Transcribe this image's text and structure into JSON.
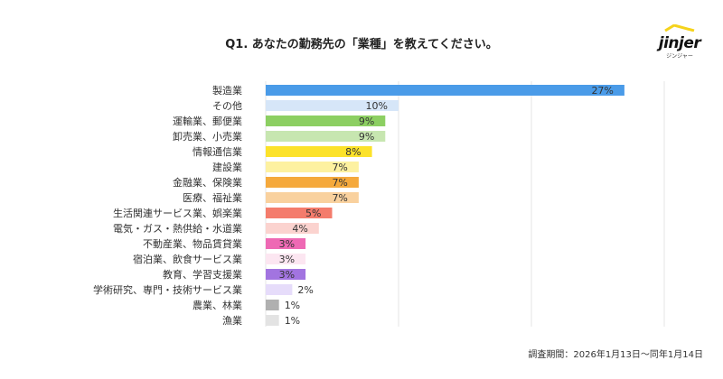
{
  "title": "Q1. あなたの勤務先の「業種」を教えてください。",
  "logo": {
    "text": "jinjer",
    "kana": "ジンジャー",
    "accent": "#f5d31c"
  },
  "note": "調査期間：2026年1月13日〜同年1月14日",
  "chart_data": {
    "type": "bar",
    "orientation": "horizontal",
    "xlim": [
      0,
      30
    ],
    "grid": true,
    "categories": [
      "製造業",
      "その他",
      "運輸業、郵便業",
      "卸売業、小売業",
      "情報通信業",
      "建設業",
      "金融業、保険業",
      "医療、福祉業",
      "生活関連サービス業、娯楽業",
      "電気・ガス・熱供給・水道業",
      "不動産業、物品賃貸業",
      "宿泊業、飲食サービス業",
      "教育、学習支援業",
      "学術研究、専門・技術サービス業",
      "農業、林業",
      "漁業"
    ],
    "values": [
      27,
      10,
      9,
      9,
      8,
      7,
      7,
      7,
      5,
      4,
      3,
      3,
      3,
      2,
      1,
      1
    ],
    "labels": [
      "27%",
      "10%",
      "9%",
      "9%",
      "8%",
      "7%",
      "7%",
      "7%",
      "5%",
      "4%",
      "3%",
      "3%",
      "3%",
      "2%",
      "1%",
      "1%"
    ],
    "colors": [
      "#4a9be8",
      "#d6e6f8",
      "#8ccf62",
      "#c7e6b0",
      "#fce22a",
      "#fdf1a0",
      "#f5a93c",
      "#f9d19e",
      "#f47c6c",
      "#fbd3cf",
      "#ee69b4",
      "#fce6f1",
      "#a274e0",
      "#e6dcfa",
      "#b0b0b0",
      "#e3e3e3"
    ]
  }
}
